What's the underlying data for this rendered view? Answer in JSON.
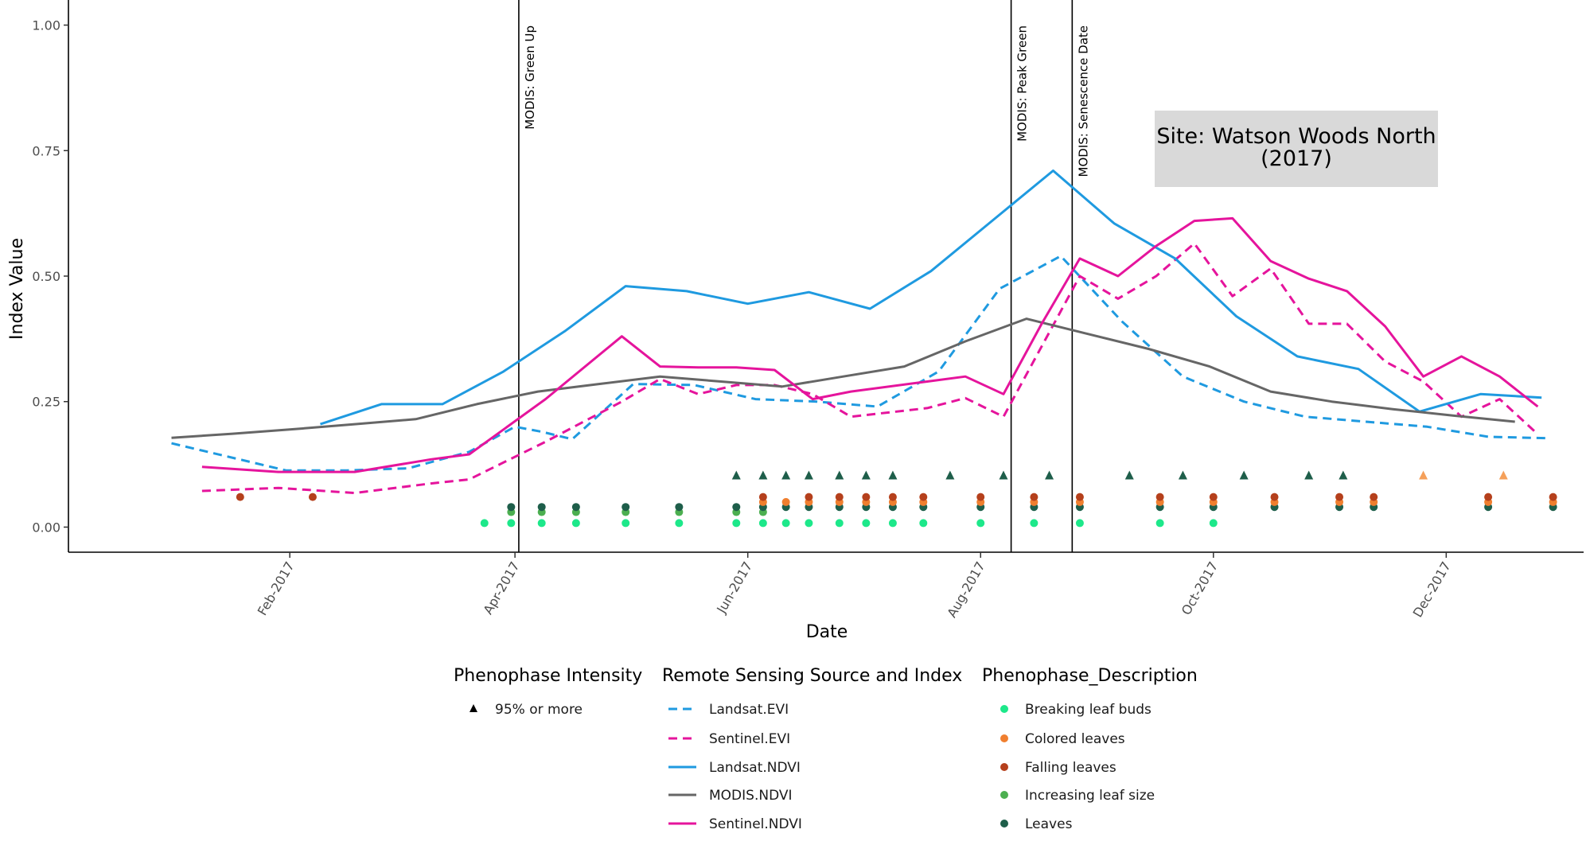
{
  "chart_data": {
    "type": "line",
    "xlabel": "Date",
    "ylabel": "Index Value",
    "site_label_lines": [
      "Site: Watson Woods North",
      "(2017)"
    ],
    "x_range": [
      "2016-12-05",
      "2018-01-06"
    ],
    "ylim": [
      -0.05,
      1.05
    ],
    "y_ticks": [
      0,
      0.25,
      0.5,
      0.75,
      1.0
    ],
    "y_tick_labels": [
      "0.00",
      "0.25",
      "0.50",
      "0.75",
      "1.00"
    ],
    "x_ticks": [
      {
        "date": "2017-02-01",
        "label": "Feb-2017"
      },
      {
        "date": "2017-04-01",
        "label": "Apr-2017"
      },
      {
        "date": "2017-06-01",
        "label": "Jun-2017"
      },
      {
        "date": "2017-08-01",
        "label": "Aug-2017"
      },
      {
        "date": "2017-10-01",
        "label": "Oct-2017"
      },
      {
        "date": "2017-12-01",
        "label": "Dec-2017"
      }
    ],
    "grid": false,
    "vlines": [
      {
        "date": "2017-04-02",
        "label": "MODIS: Green Up"
      },
      {
        "date": "2017-08-09",
        "label": "MODIS:  Peak Green"
      },
      {
        "date": "2017-08-25",
        "label": "MODIS: Senescence Date"
      }
    ],
    "series": [
      {
        "name": "Landsat.EVI",
        "color": "#1f9ae0",
        "dash": "dashed",
        "points": [
          [
            "2017-01-01",
            0.167
          ],
          [
            "2017-01-31",
            0.113
          ],
          [
            "2017-02-16",
            0.113
          ],
          [
            "2017-03-04",
            0.117
          ],
          [
            "2017-03-20",
            0.15
          ],
          [
            "2017-04-01",
            0.2
          ],
          [
            "2017-04-08",
            0.19
          ],
          [
            "2017-04-16",
            0.175
          ],
          [
            "2017-05-02",
            0.285
          ],
          [
            "2017-05-18",
            0.283
          ],
          [
            "2017-06-03",
            0.255
          ],
          [
            "2017-06-19",
            0.25
          ],
          [
            "2017-07-05",
            0.24
          ],
          [
            "2017-07-21",
            0.31
          ],
          [
            "2017-08-06",
            0.475
          ],
          [
            "2017-08-22",
            0.54
          ],
          [
            "2017-09-07",
            0.41
          ],
          [
            "2017-09-23",
            0.3
          ],
          [
            "2017-10-09",
            0.25
          ],
          [
            "2017-10-25",
            0.22
          ],
          [
            "2017-11-10",
            0.21
          ],
          [
            "2017-11-26",
            0.2
          ],
          [
            "2017-12-12",
            0.18
          ],
          [
            "2017-12-28",
            0.177
          ]
        ]
      },
      {
        "name": "Sentinel.EVI",
        "color": "#e5149c",
        "dash": "dashed",
        "points": [
          [
            "2017-01-09",
            0.072
          ],
          [
            "2017-01-29",
            0.078
          ],
          [
            "2017-02-18",
            0.068
          ],
          [
            "2017-03-10",
            0.087
          ],
          [
            "2017-03-20",
            0.095
          ],
          [
            "2017-04-09",
            0.17
          ],
          [
            "2017-04-29",
            0.25
          ],
          [
            "2017-05-09",
            0.295
          ],
          [
            "2017-05-19",
            0.265
          ],
          [
            "2017-05-29",
            0.283
          ],
          [
            "2017-06-08",
            0.283
          ],
          [
            "2017-06-18",
            0.265
          ],
          [
            "2017-06-28",
            0.22
          ],
          [
            "2017-07-18",
            0.237
          ],
          [
            "2017-07-28",
            0.257
          ],
          [
            "2017-08-07",
            0.22
          ],
          [
            "2017-08-17",
            0.36
          ],
          [
            "2017-08-27",
            0.5
          ],
          [
            "2017-09-06",
            0.455
          ],
          [
            "2017-09-16",
            0.5
          ],
          [
            "2017-09-26",
            0.565
          ],
          [
            "2017-10-06",
            0.46
          ],
          [
            "2017-10-16",
            0.515
          ],
          [
            "2017-10-26",
            0.405
          ],
          [
            "2017-11-05",
            0.405
          ],
          [
            "2017-11-15",
            0.33
          ],
          [
            "2017-11-25",
            0.29
          ],
          [
            "2017-12-05",
            0.22
          ],
          [
            "2017-12-15",
            0.255
          ],
          [
            "2017-12-25",
            0.185
          ]
        ]
      },
      {
        "name": "Landsat.NDVI",
        "color": "#1f9ae0",
        "dash": "solid",
        "points": [
          [
            "2017-02-09",
            0.205
          ],
          [
            "2017-02-25",
            0.245
          ],
          [
            "2017-03-13",
            0.245
          ],
          [
            "2017-03-29",
            0.31
          ],
          [
            "2017-04-14",
            0.39
          ],
          [
            "2017-04-30",
            0.48
          ],
          [
            "2017-05-16",
            0.47
          ],
          [
            "2017-06-01",
            0.445
          ],
          [
            "2017-06-17",
            0.468
          ],
          [
            "2017-07-03",
            0.435
          ],
          [
            "2017-07-19",
            0.51
          ],
          [
            "2017-08-04",
            0.61
          ],
          [
            "2017-08-20",
            0.71
          ],
          [
            "2017-09-05",
            0.605
          ],
          [
            "2017-09-21",
            0.535
          ],
          [
            "2017-10-07",
            0.42
          ],
          [
            "2017-10-23",
            0.34
          ],
          [
            "2017-11-08",
            0.315
          ],
          [
            "2017-11-24",
            0.23
          ],
          [
            "2017-12-10",
            0.265
          ],
          [
            "2017-12-26",
            0.258
          ]
        ]
      },
      {
        "name": "MODIS.NDVI",
        "color": "#666666",
        "dash": "solid",
        "points": [
          [
            "2017-01-01",
            0.178
          ],
          [
            "2017-01-17",
            0.186
          ],
          [
            "2017-02-02",
            0.195
          ],
          [
            "2017-02-18",
            0.205
          ],
          [
            "2017-03-06",
            0.215
          ],
          [
            "2017-03-22",
            0.245
          ],
          [
            "2017-04-07",
            0.27
          ],
          [
            "2017-04-23",
            0.285
          ],
          [
            "2017-05-09",
            0.3
          ],
          [
            "2017-05-25",
            0.29
          ],
          [
            "2017-06-10",
            0.28
          ],
          [
            "2017-06-26",
            0.3
          ],
          [
            "2017-07-12",
            0.32
          ],
          [
            "2017-07-28",
            0.37
          ],
          [
            "2017-08-13",
            0.415
          ],
          [
            "2017-08-29",
            0.385
          ],
          [
            "2017-09-14",
            0.355
          ],
          [
            "2017-09-30",
            0.32
          ],
          [
            "2017-10-16",
            0.27
          ],
          [
            "2017-11-01",
            0.25
          ],
          [
            "2017-11-17",
            0.235
          ],
          [
            "2017-12-03",
            0.222
          ],
          [
            "2017-12-19",
            0.21
          ]
        ]
      },
      {
        "name": "Sentinel.NDVI",
        "color": "#e5149c",
        "dash": "solid",
        "points": [
          [
            "2017-01-09",
            0.12
          ],
          [
            "2017-01-29",
            0.11
          ],
          [
            "2017-02-18",
            0.11
          ],
          [
            "2017-03-10",
            0.135
          ],
          [
            "2017-03-20",
            0.145
          ],
          [
            "2017-04-09",
            0.255
          ],
          [
            "2017-04-29",
            0.38
          ],
          [
            "2017-05-09",
            0.32
          ],
          [
            "2017-05-19",
            0.318
          ],
          [
            "2017-05-29",
            0.318
          ],
          [
            "2017-06-08",
            0.313
          ],
          [
            "2017-06-18",
            0.255
          ],
          [
            "2017-06-28",
            0.27
          ],
          [
            "2017-07-18",
            0.29
          ],
          [
            "2017-07-28",
            0.3
          ],
          [
            "2017-08-07",
            0.265
          ],
          [
            "2017-08-17",
            0.405
          ],
          [
            "2017-08-27",
            0.535
          ],
          [
            "2017-09-06",
            0.5
          ],
          [
            "2017-09-16",
            0.56
          ],
          [
            "2017-09-26",
            0.61
          ],
          [
            "2017-10-06",
            0.615
          ],
          [
            "2017-10-16",
            0.53
          ],
          [
            "2017-10-26",
            0.495
          ],
          [
            "2017-11-05",
            0.47
          ],
          [
            "2017-11-15",
            0.4
          ],
          [
            "2017-11-25",
            0.3
          ],
          [
            "2017-12-05",
            0.34
          ],
          [
            "2017-12-15",
            0.3
          ],
          [
            "2017-12-25",
            0.24
          ]
        ]
      }
    ],
    "phenophase_points": [
      {
        "description": "Breaking leaf buds",
        "color": "#1de88a",
        "value": 0.008,
        "dates": [
          "2017-03-24",
          "2017-03-31",
          "2017-04-08",
          "2017-04-17",
          "2017-04-30",
          "2017-05-14",
          "2017-05-29",
          "2017-06-05",
          "2017-06-11",
          "2017-06-17",
          "2017-06-25",
          "2017-07-02",
          "2017-07-09",
          "2017-07-17",
          "2017-08-01",
          "2017-08-15",
          "2017-08-27",
          "2017-09-17",
          "2017-10-01"
        ]
      },
      {
        "description": "Increasing leaf size",
        "color": "#4caf50",
        "value": 0.03,
        "dates": [
          "2017-03-31",
          "2017-04-08",
          "2017-04-17",
          "2017-04-30",
          "2017-05-14",
          "2017-05-29",
          "2017-06-05"
        ]
      },
      {
        "description": "Leaves",
        "color": "#1e5e4a",
        "value": 0.04,
        "dates": [
          "2017-03-31",
          "2017-04-08",
          "2017-04-17",
          "2017-04-30",
          "2017-05-14",
          "2017-05-29",
          "2017-06-05",
          "2017-06-11",
          "2017-06-17",
          "2017-06-25",
          "2017-07-02",
          "2017-07-09",
          "2017-07-17",
          "2017-08-01",
          "2017-08-15",
          "2017-08-27",
          "2017-09-17",
          "2017-10-01",
          "2017-10-17",
          "2017-11-03",
          "2017-11-12",
          "2017-12-12",
          "2017-12-29"
        ]
      },
      {
        "description": "Colored leaves",
        "color": "#f07f2f",
        "value": 0.05,
        "dates": [
          "2017-06-05",
          "2017-06-11",
          "2017-06-17",
          "2017-06-25",
          "2017-07-02",
          "2017-07-09",
          "2017-07-17",
          "2017-08-01",
          "2017-08-15",
          "2017-08-27",
          "2017-09-17",
          "2017-10-01",
          "2017-10-17",
          "2017-11-03",
          "2017-11-12",
          "2017-12-12",
          "2017-12-29"
        ]
      },
      {
        "description": "Falling leaves",
        "color": "#b5401c",
        "value": 0.06,
        "dates": [
          "2017-01-19",
          "2017-02-07",
          "2017-06-05",
          "2017-06-17",
          "2017-06-25",
          "2017-07-02",
          "2017-07-09",
          "2017-07-17",
          "2017-08-01",
          "2017-08-15",
          "2017-08-27",
          "2017-09-17",
          "2017-10-01",
          "2017-10-17",
          "2017-11-03",
          "2017-11-12",
          "2017-12-12",
          "2017-12-29"
        ]
      }
    ],
    "intensity_points": [
      {
        "intensity": "95% or more",
        "color": "#1e5e4a",
        "value": 0.103,
        "dates": [
          "2017-05-29",
          "2017-06-05",
          "2017-06-11",
          "2017-06-17",
          "2017-06-25",
          "2017-07-02",
          "2017-07-09",
          "2017-07-24",
          "2017-08-07",
          "2017-08-19",
          "2017-09-09",
          "2017-09-23",
          "2017-10-09",
          "2017-10-26",
          "2017-11-04"
        ]
      },
      {
        "intensity": "95% or more",
        "color": "#f5a05a",
        "value": 0.103,
        "dates": [
          "2017-11-25",
          "2017-12-16"
        ]
      }
    ],
    "legends": [
      {
        "title": "Phenophase Intensity",
        "items": [
          {
            "label": "95% or more",
            "shape": "triangle",
            "color": "#000000"
          }
        ]
      },
      {
        "title": "Remote Sensing Source and Index",
        "items": [
          {
            "label": "Landsat.EVI",
            "shape": "line-dashed",
            "color": "#1f9ae0"
          },
          {
            "label": "Sentinel.EVI",
            "shape": "line-dashed",
            "color": "#e5149c"
          },
          {
            "label": "Landsat.NDVI",
            "shape": "line",
            "color": "#1f9ae0"
          },
          {
            "label": "MODIS.NDVI",
            "shape": "line",
            "color": "#666666"
          },
          {
            "label": "Sentinel.NDVI",
            "shape": "line",
            "color": "#e5149c"
          }
        ]
      },
      {
        "title": "Phenophase_Description",
        "items": [
          {
            "label": "Breaking leaf buds",
            "shape": "dot",
            "color": "#1de88a"
          },
          {
            "label": "Colored leaves",
            "shape": "dot",
            "color": "#f07f2f"
          },
          {
            "label": "Falling leaves",
            "shape": "dot",
            "color": "#b5401c"
          },
          {
            "label": "Increasing leaf size",
            "shape": "dot",
            "color": "#4caf50"
          },
          {
            "label": "Leaves",
            "shape": "dot",
            "color": "#1e5e4a"
          }
        ]
      }
    ]
  }
}
